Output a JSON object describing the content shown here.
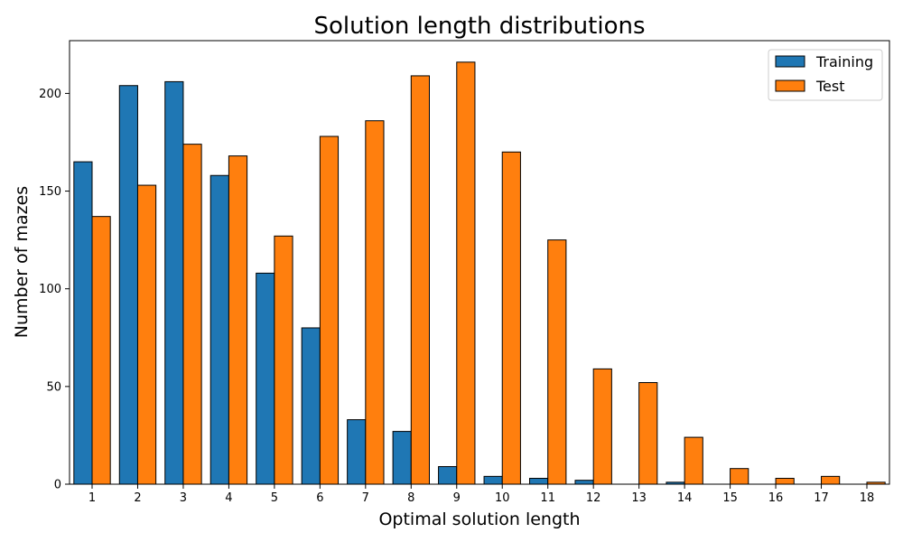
{
  "chart_data": {
    "type": "bar",
    "title": "Solution length distributions",
    "xlabel": "Optimal solution length",
    "ylabel": "Number of mazes",
    "categories": [
      "1",
      "2",
      "3",
      "4",
      "5",
      "6",
      "7",
      "8",
      "9",
      "10",
      "11",
      "12",
      "13",
      "14",
      "15",
      "16",
      "17",
      "18"
    ],
    "series": [
      {
        "name": "Training",
        "color": "#1f77b4",
        "values": [
          165,
          204,
          206,
          158,
          108,
          80,
          33,
          27,
          9,
          4,
          3,
          2,
          0,
          1,
          0,
          0,
          0,
          0
        ]
      },
      {
        "name": "Test",
        "color": "#ff7f0e",
        "values": [
          137,
          153,
          174,
          168,
          127,
          178,
          186,
          209,
          216,
          170,
          125,
          59,
          52,
          24,
          8,
          3,
          4,
          1
        ]
      }
    ],
    "ylim": [
      0,
      227
    ],
    "yticks": [
      0,
      50,
      100,
      150,
      200
    ],
    "grid": false,
    "legend_position": "top-right"
  }
}
